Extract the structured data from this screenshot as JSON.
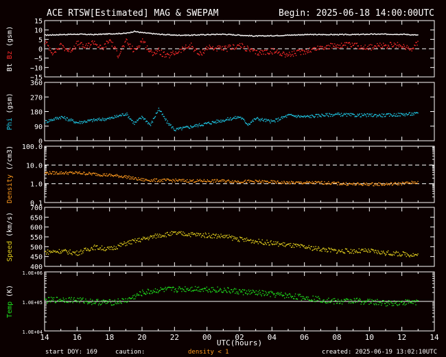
{
  "header": {
    "title": "ACE RTSW[Estimated] MAG & SWEPAM",
    "begin": "Begin: 2025-06-18 14:00:00UTC"
  },
  "footer": {
    "start_doy": "start DOY: 169",
    "caution_label": "caution:",
    "caution_value": "density < 1",
    "created": "created: 2025-06-19 13:02:10UTC"
  },
  "colors": {
    "background": "#0b0000",
    "axes": "#ffffff",
    "bt": "#ffffff",
    "bz": "#ff2a2a",
    "phi": "#1ec8e6",
    "density": "#ff9a1e",
    "speed": "#e6d21e",
    "temp": "#1ee61e"
  },
  "chart_data": [
    {
      "type": "scatter",
      "panel": "mag",
      "ylabel_bt": "Bt",
      "ylabel_bz": "Bz",
      "ylabel_unit": "(gsm)",
      "ylim": [
        -15,
        15
      ],
      "yticks": [
        "15",
        "10",
        "5",
        "0",
        "−5",
        "−10",
        "−15"
      ],
      "ref_lines": [
        0
      ],
      "series": [
        {
          "name": "Bt",
          "color": "#ffffff",
          "x": [
            14,
            15,
            16,
            17,
            18,
            19,
            19.5,
            20,
            21,
            22,
            23,
            24,
            25,
            26,
            27,
            28,
            29,
            30,
            31,
            32,
            33,
            34,
            35,
            36,
            37
          ],
          "y": [
            7.5,
            7.8,
            8,
            7.8,
            8.2,
            8.5,
            9.5,
            8.8,
            8,
            7.5,
            7.5,
            7.8,
            8,
            7.5,
            7,
            7.2,
            7.5,
            7.8,
            7.8,
            7.8,
            7.8,
            8,
            8,
            8,
            7.5
          ]
        },
        {
          "name": "Bz",
          "color": "#ff2a2a",
          "x": [
            14,
            14.5,
            15,
            15.5,
            16,
            16.5,
            17,
            17.5,
            18,
            18.5,
            19,
            19.5,
            20,
            20.5,
            21,
            21.5,
            22,
            22.5,
            23,
            23.5,
            24,
            25,
            26,
            27,
            28,
            29,
            30,
            31,
            32,
            33,
            34,
            35,
            36,
            36.5,
            37
          ],
          "y": [
            4,
            -2,
            2,
            -1,
            3,
            1,
            4,
            0,
            5,
            -3,
            4,
            -1,
            5,
            -2,
            -1,
            -4,
            -2,
            0,
            2,
            -3,
            1,
            0,
            2,
            -2,
            -1,
            -3,
            -1,
            1,
            2,
            2,
            1,
            2,
            2,
            0,
            4
          ]
        }
      ]
    },
    {
      "type": "scatter",
      "panel": "phi",
      "ylabel": "Phi (gsm)",
      "ylim": [
        0,
        360
      ],
      "yticks": [
        "360",
        "270",
        "180",
        "90",
        "0"
      ],
      "series": [
        {
          "name": "Phi",
          "color": "#1ec8e6",
          "x": [
            14,
            15,
            16,
            17,
            18,
            19,
            19.5,
            20,
            20.5,
            21,
            21.5,
            22,
            23,
            24,
            25,
            26,
            26.5,
            27,
            28,
            29,
            30,
            31,
            32,
            33,
            34,
            35,
            36,
            37
          ],
          "y": [
            120,
            150,
            115,
            130,
            140,
            170,
            110,
            150,
            100,
            200,
            120,
            70,
            90,
            110,
            130,
            150,
            105,
            140,
            120,
            160,
            150,
            160,
            165,
            160,
            160,
            160,
            165,
            170
          ]
        }
      ]
    },
    {
      "type": "scatter",
      "panel": "density",
      "ylabel": "Density (/cm3)",
      "yscale": "log",
      "ylim": [
        0.1,
        100
      ],
      "yticks": [
        "100.0",
        "10.0",
        "1.0",
        "0.1"
      ],
      "ref_lines": [
        10,
        1
      ],
      "series": [
        {
          "name": "Density",
          "color": "#ff9a1e",
          "x": [
            14,
            15,
            16,
            17,
            18,
            19,
            19.5,
            20,
            21,
            22,
            23,
            24,
            25,
            26,
            27,
            28,
            29,
            30,
            31,
            32,
            33,
            34,
            35,
            36,
            37
          ],
          "y": [
            4,
            4,
            4,
            3.5,
            3,
            2.5,
            2,
            1.7,
            1.6,
            1.6,
            1.5,
            1.5,
            1.5,
            1.4,
            1.4,
            1.3,
            1.2,
            1.2,
            1.2,
            1.1,
            1.0,
            1.0,
            1.0,
            1.1,
            1.3
          ]
        }
      ]
    },
    {
      "type": "scatter",
      "panel": "speed",
      "ylabel": "Speed (km/s)",
      "ylim": [
        400,
        700
      ],
      "yticks": [
        "700",
        "650",
        "600",
        "550",
        "500",
        "450",
        "400"
      ],
      "series": [
        {
          "name": "Speed",
          "color": "#e6d21e",
          "x": [
            14,
            15,
            16,
            17,
            18,
            19,
            20,
            21,
            22,
            23,
            24,
            25,
            26,
            27,
            28,
            29,
            30,
            31,
            32,
            33,
            34,
            35,
            36,
            37
          ],
          "y": [
            475,
            480,
            470,
            500,
            490,
            520,
            540,
            560,
            570,
            565,
            560,
            555,
            540,
            530,
            520,
            510,
            500,
            490,
            480,
            480,
            480,
            470,
            465,
            460
          ]
        }
      ]
    },
    {
      "type": "scatter",
      "panel": "temp",
      "ylabel": "Temp (K)",
      "yscale": "log",
      "ylim": [
        10000,
        1000000
      ],
      "yticks": [
        "1.0E+06",
        "1.0E+05",
        "1.0E+04"
      ],
      "ref_lines": [
        100000
      ],
      "series": [
        {
          "name": "Temp",
          "color": "#1ee61e",
          "x": [
            14,
            15,
            16,
            17,
            18,
            19,
            20,
            21,
            22,
            23,
            24,
            25,
            26,
            27,
            28,
            29,
            30,
            31,
            32,
            33,
            34,
            35,
            36,
            37
          ],
          "y": [
            110000,
            120000,
            115000,
            100000,
            95000,
            110000,
            200000,
            250000,
            260000,
            280000,
            270000,
            250000,
            220000,
            200000,
            180000,
            160000,
            140000,
            120000,
            100000,
            110000,
            100000,
            90000,
            95000,
            100000
          ]
        }
      ]
    }
  ],
  "xaxis": {
    "label": "UTC(hours)",
    "ticks": [
      "14",
      "16",
      "18",
      "20",
      "22",
      "00",
      "02",
      "04",
      "06",
      "08",
      "10",
      "12",
      "14"
    ]
  }
}
